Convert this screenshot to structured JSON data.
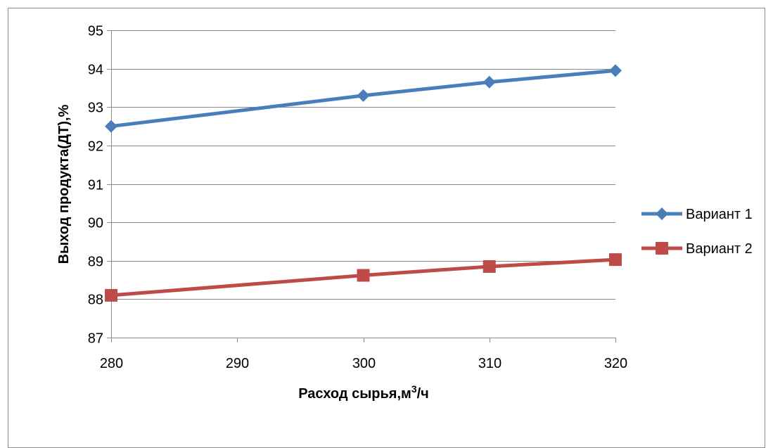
{
  "chart_data": {
    "type": "line",
    "title": "",
    "xlabel_main": "Расход сырья,м",
    "xlabel_sup": "3",
    "xlabel_tail": "/ч",
    "ylabel": "Выход продукта(ДТ),%",
    "x_ticks": [
      "280",
      "290",
      "300",
      "310",
      "320"
    ],
    "y_ticks": [
      "87",
      "88",
      "89",
      "90",
      "91",
      "92",
      "93",
      "94",
      "95"
    ],
    "xlim": [
      280,
      320
    ],
    "ylim": [
      87,
      95
    ],
    "grid": "horizontal",
    "legend_position": "right",
    "series": [
      {
        "name": "Вариант 1",
        "color": "#4a7ebb",
        "marker": "diamond",
        "x": [
          280,
          300,
          310,
          320
        ],
        "y": [
          92.5,
          93.3,
          93.65,
          93.95
        ]
      },
      {
        "name": "Вариант 2",
        "color": "#be4b48",
        "marker": "square",
        "x": [
          280,
          300,
          310,
          320
        ],
        "y": [
          88.1,
          88.62,
          88.85,
          89.03
        ]
      }
    ]
  }
}
